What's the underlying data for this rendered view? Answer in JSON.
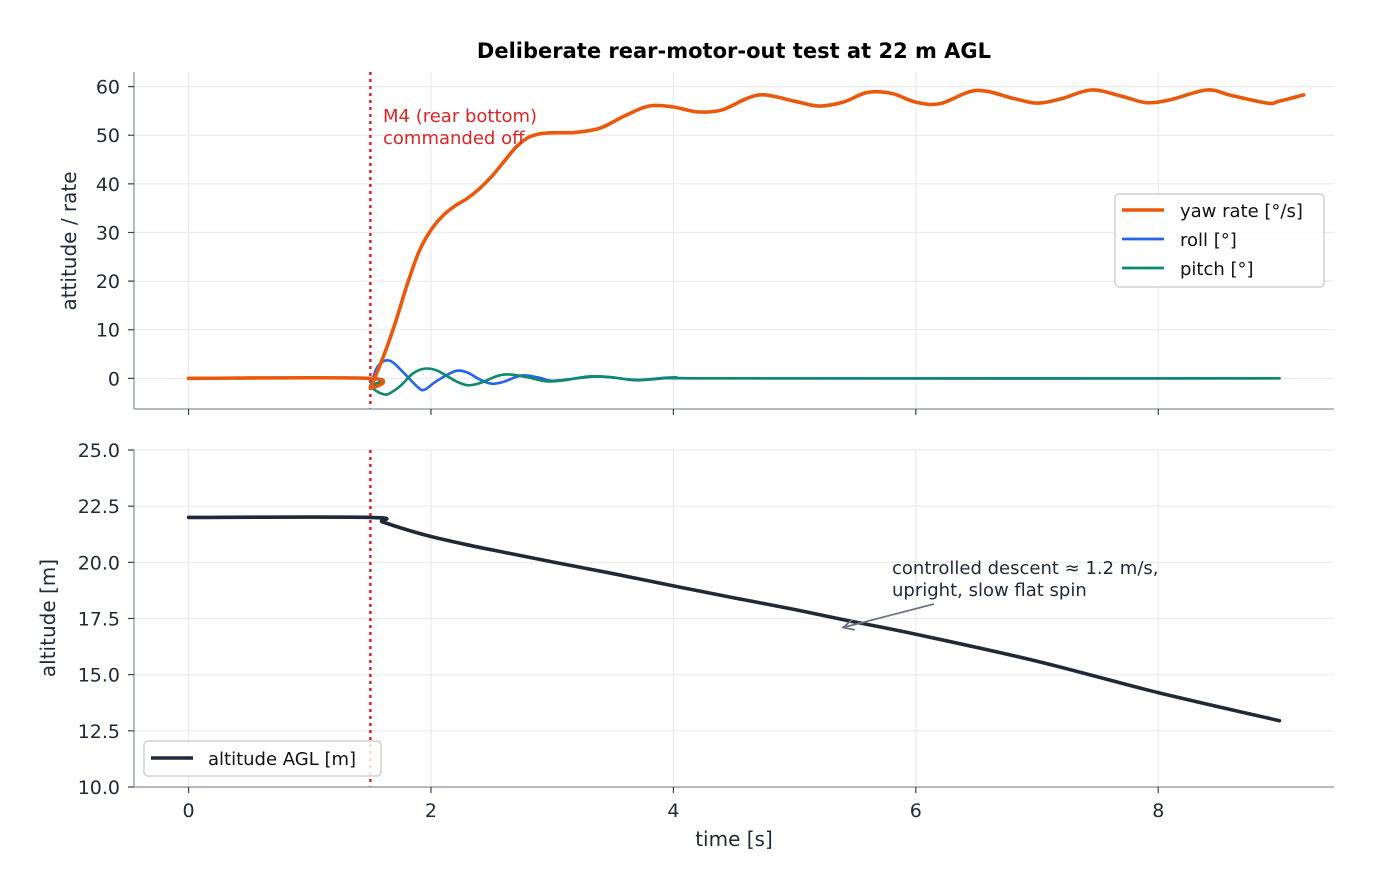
{
  "chart_data": [
    {
      "type": "line",
      "title": "Deliberate rear-motor-out test at 22 m AGL",
      "xlabel": "",
      "ylabel": "attitude / rate",
      "xlim": [
        -0.45,
        9.45
      ],
      "ylim": [
        -6.3,
        63.0
      ],
      "yticks": [
        0,
        10,
        20,
        30,
        40,
        50,
        60
      ],
      "xticks": [
        0,
        2,
        4,
        6,
        8
      ],
      "grid": true,
      "legend_position": "center-right",
      "event": {
        "x": 1.5,
        "color": "#dc2626",
        "label_line1": "M4 (rear bottom)",
        "label_line2": "commanded off"
      },
      "series": [
        {
          "name": "yaw rate [°/s]",
          "color": "#e8590c",
          "points": [
            [
              0,
              0
            ],
            [
              1.5,
              0
            ],
            [
              1.5,
              -1.8
            ],
            [
              1.6,
              4
            ],
            [
              1.7,
              11
            ],
            [
              1.8,
              19
            ],
            [
              1.9,
              26
            ],
            [
              2.0,
              30.5
            ],
            [
              2.1,
              33.5
            ],
            [
              2.2,
              35.5
            ],
            [
              2.3,
              37
            ],
            [
              2.4,
              39
            ],
            [
              2.5,
              41.5
            ],
            [
              2.6,
              44.5
            ],
            [
              2.7,
              47.5
            ],
            [
              2.8,
              49.5
            ],
            [
              2.9,
              50.3
            ],
            [
              3.0,
              50.5
            ],
            [
              3.2,
              50.6
            ],
            [
              3.4,
              51.5
            ],
            [
              3.6,
              54
            ],
            [
              3.8,
              56
            ],
            [
              4.0,
              55.8
            ],
            [
              4.2,
              54.8
            ],
            [
              4.4,
              55.2
            ],
            [
              4.6,
              57.5
            ],
            [
              4.75,
              58.3
            ],
            [
              5.0,
              57
            ],
            [
              5.2,
              56
            ],
            [
              5.4,
              56.8
            ],
            [
              5.6,
              58.8
            ],
            [
              5.8,
              58.6
            ],
            [
              6.0,
              56.8
            ],
            [
              6.2,
              56.5
            ],
            [
              6.5,
              59.2
            ],
            [
              6.8,
              57.6
            ],
            [
              7.0,
              56.6
            ],
            [
              7.2,
              57.5
            ],
            [
              7.45,
              59.3
            ],
            [
              7.7,
              58
            ],
            [
              7.9,
              56.7
            ],
            [
              8.1,
              57.3
            ],
            [
              8.4,
              59.3
            ],
            [
              8.6,
              58.2
            ],
            [
              8.9,
              56.6
            ],
            [
              9.0,
              57
            ],
            [
              9.2,
              58.3
            ]
          ]
        },
        {
          "name": "roll [°]",
          "color": "#2563eb",
          "points": [
            [
              0,
              0
            ],
            [
              1.5,
              0
            ],
            [
              1.5,
              -1.5
            ],
            [
              1.55,
              2.0
            ],
            [
              1.6,
              3.4
            ],
            [
              1.65,
              3.7
            ],
            [
              1.7,
              3.0
            ],
            [
              1.8,
              0.5
            ],
            [
              1.9,
              -2.0
            ],
            [
              1.95,
              -2.3
            ],
            [
              2.05,
              -0.5
            ],
            [
              2.2,
              1.5
            ],
            [
              2.3,
              1.2
            ],
            [
              2.4,
              -0.2
            ],
            [
              2.5,
              -1.1
            ],
            [
              2.6,
              -0.7
            ],
            [
              2.75,
              0.6
            ],
            [
              2.9,
              0.1
            ],
            [
              3.0,
              -0.5
            ],
            [
              3.2,
              0.0
            ],
            [
              3.4,
              0.4
            ],
            [
              3.7,
              -0.3
            ],
            [
              4.0,
              0.2
            ],
            [
              4.5,
              0
            ],
            [
              9.0,
              0
            ]
          ]
        },
        {
          "name": "pitch [°]",
          "color": "#0b8a6c",
          "points": [
            [
              0,
              0
            ],
            [
              1.5,
              0
            ],
            [
              1.5,
              -1.5
            ],
            [
              1.55,
              -2.6
            ],
            [
              1.6,
              -3.2
            ],
            [
              1.65,
              -3.2
            ],
            [
              1.75,
              -1.5
            ],
            [
              1.85,
              1.0
            ],
            [
              1.95,
              2.0
            ],
            [
              2.05,
              1.6
            ],
            [
              2.2,
              -0.5
            ],
            [
              2.3,
              -1.4
            ],
            [
              2.4,
              -1.0
            ],
            [
              2.55,
              0.5
            ],
            [
              2.65,
              0.8
            ],
            [
              2.8,
              0.2
            ],
            [
              2.95,
              -0.6
            ],
            [
              3.1,
              -0.4
            ],
            [
              3.3,
              0.4
            ],
            [
              3.5,
              0.2
            ],
            [
              3.7,
              -0.4
            ],
            [
              4.0,
              0.1
            ],
            [
              4.4,
              0
            ],
            [
              9.0,
              0
            ]
          ]
        }
      ]
    },
    {
      "type": "line",
      "title": "",
      "xlabel": "time [s]",
      "ylabel": "altitude [m]",
      "xlim": [
        -0.45,
        9.45
      ],
      "ylim": [
        10.0,
        25.0
      ],
      "yticks": [
        "10.0",
        "12.5",
        "15.0",
        "17.5",
        "20.0",
        "22.5",
        "25.0"
      ],
      "xticks": [
        0,
        2,
        4,
        6,
        8
      ],
      "grid": true,
      "legend_position": "lower-left",
      "event": {
        "x": 1.5,
        "color": "#dc2626"
      },
      "annotation": {
        "line1": "controlled descent ≈ 1.2 m/s,",
        "line2": "upright, slow flat spin",
        "color": "#1f2937",
        "arrow_to": [
          5.4,
          17.1
        ]
      },
      "series": [
        {
          "name": "altitude AGL [m]",
          "color": "#1f2937",
          "points": [
            [
              0,
              22
            ],
            [
              1.5,
              22
            ],
            [
              1.6,
              21.8
            ],
            [
              1.8,
              21.45
            ],
            [
              2.0,
              21.15
            ],
            [
              2.3,
              20.78
            ],
            [
              2.6,
              20.45
            ],
            [
              3.0,
              20.02
            ],
            [
              3.5,
              19.5
            ],
            [
              4.0,
              18.95
            ],
            [
              4.5,
              18.42
            ],
            [
              5.0,
              17.9
            ],
            [
              5.4,
              17.45
            ],
            [
              6.0,
              16.8
            ],
            [
              7.0,
              15.6
            ],
            [
              8.0,
              14.2
            ],
            [
              9.0,
              12.95
            ]
          ]
        }
      ]
    }
  ]
}
